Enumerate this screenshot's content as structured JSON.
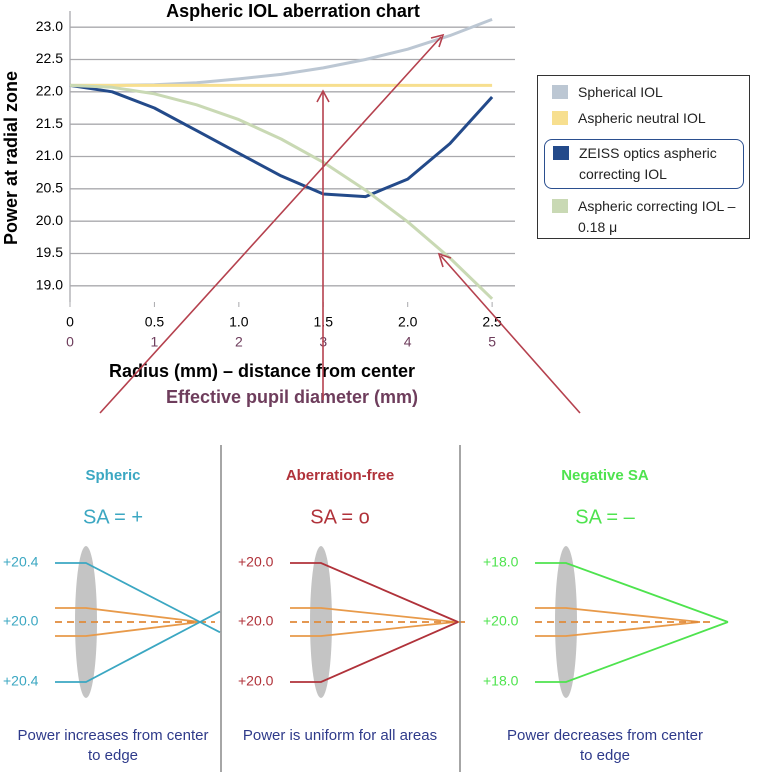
{
  "chart_data": {
    "type": "line",
    "title": "Aspheric IOL aberration chart",
    "y_label": "Power at radial zone",
    "x_label": "Radius (mm) – distance from center",
    "x2_label": "Effective pupil diameter (mm)",
    "x": [
      0,
      0.25,
      0.5,
      0.75,
      1,
      1.25,
      1.5,
      1.75,
      2,
      2.25,
      2.5
    ],
    "series": [
      {
        "name": "Spherical IOL",
        "color": "#bcc7d3",
        "values": [
          22.1,
          22.1,
          22.11,
          22.14,
          22.2,
          22.27,
          22.37,
          22.5,
          22.66,
          22.87,
          23.12
        ]
      },
      {
        "name": "Aspheric neutral IOL",
        "color": "#f7df8f",
        "values": [
          22.1,
          22.1,
          22.1,
          22.1,
          22.1,
          22.1,
          22.1,
          22.1,
          22.1,
          22.1,
          22.1
        ]
      },
      {
        "name": "ZEISS optics aspheric correcting IOL",
        "color": "#234a8a",
        "values": [
          22.1,
          22.0,
          21.75,
          21.4,
          21.05,
          20.7,
          20.42,
          20.38,
          20.65,
          21.2,
          21.92
        ]
      },
      {
        "name": "Aspheric correcting IOL –0.18 μ",
        "color": "#c9d9b4",
        "values": [
          22.1,
          22.07,
          21.97,
          21.8,
          21.57,
          21.27,
          20.91,
          20.48,
          19.99,
          19.43,
          18.8
        ]
      }
    ],
    "xlim": [
      0,
      2.6
    ],
    "xticks": [
      0,
      0.5,
      {
        "value": 1,
        "label": "1.0"
      },
      1.5,
      {
        "value": 2,
        "label": "2.0"
      },
      2.5
    ],
    "x2lim": [
      0,
      5.2
    ],
    "x2ticks": [
      0,
      1,
      2,
      3,
      4,
      5
    ],
    "ylim": [
      18.75,
      23.25
    ],
    "yticks": [
      {
        "value": 19,
        "label": "19.0"
      },
      19.5,
      {
        "value": 20,
        "label": "20.0"
      },
      20.5,
      {
        "value": 21,
        "label": "21.0"
      },
      21.5,
      {
        "value": 22,
        "label": "22.0"
      },
      22.5,
      {
        "value": 23,
        "label": "23.0"
      }
    ],
    "grid": true,
    "highlight_series": 2
  },
  "panels": [
    {
      "title": "Spheric",
      "sa": "SA = +",
      "color": "#3ba7c2",
      "labels": [
        "+20.4",
        "+20.0",
        "+20.4"
      ],
      "caption": "Power increases from center to edge"
    },
    {
      "title": "Aberration-free",
      "sa": "SA = o",
      "color": "#b0323a",
      "labels": [
        "+20.0",
        "+20.0",
        "+20.0"
      ],
      "caption": "Power is uniform for all areas"
    },
    {
      "title": "Negative SA",
      "sa": "SA = –",
      "color": "#4ee34e",
      "labels": [
        "+18.0",
        "+20.0",
        "+18.0"
      ],
      "caption": "Power decreases from center to edge"
    }
  ]
}
